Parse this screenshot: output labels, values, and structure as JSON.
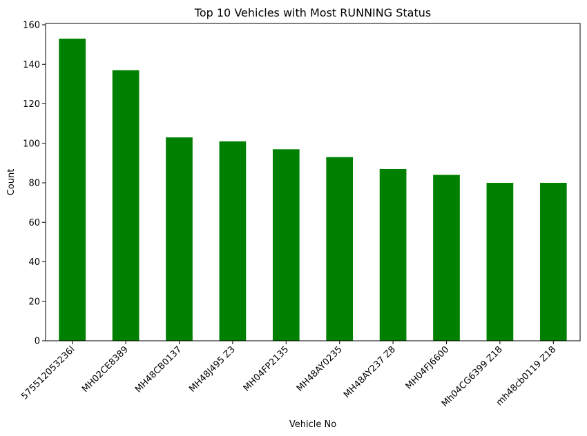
{
  "chart_data": {
    "type": "bar",
    "title": "Top 10 Vehicles with Most RUNNING Status",
    "xlabel": "Vehicle No",
    "ylabel": "Count",
    "categories": [
      "575512053236l",
      "MH02CE8389",
      "MH48CB0137",
      "MH48J495 Z3",
      "MH04FP2135",
      "MH48AY0235",
      "MH48AY237 Z8",
      "MH04FJ6600",
      "Mh04CG6399 Z18",
      "mh48cb0119 Z18"
    ],
    "values": [
      153,
      137,
      103,
      101,
      97,
      93,
      87,
      84,
      80,
      80
    ],
    "ylim": [
      0,
      160.7
    ],
    "yticks": [
      0,
      20,
      40,
      60,
      80,
      100,
      120,
      140,
      160
    ],
    "bar_color": "#008000",
    "grid": false,
    "legend": "none"
  }
}
